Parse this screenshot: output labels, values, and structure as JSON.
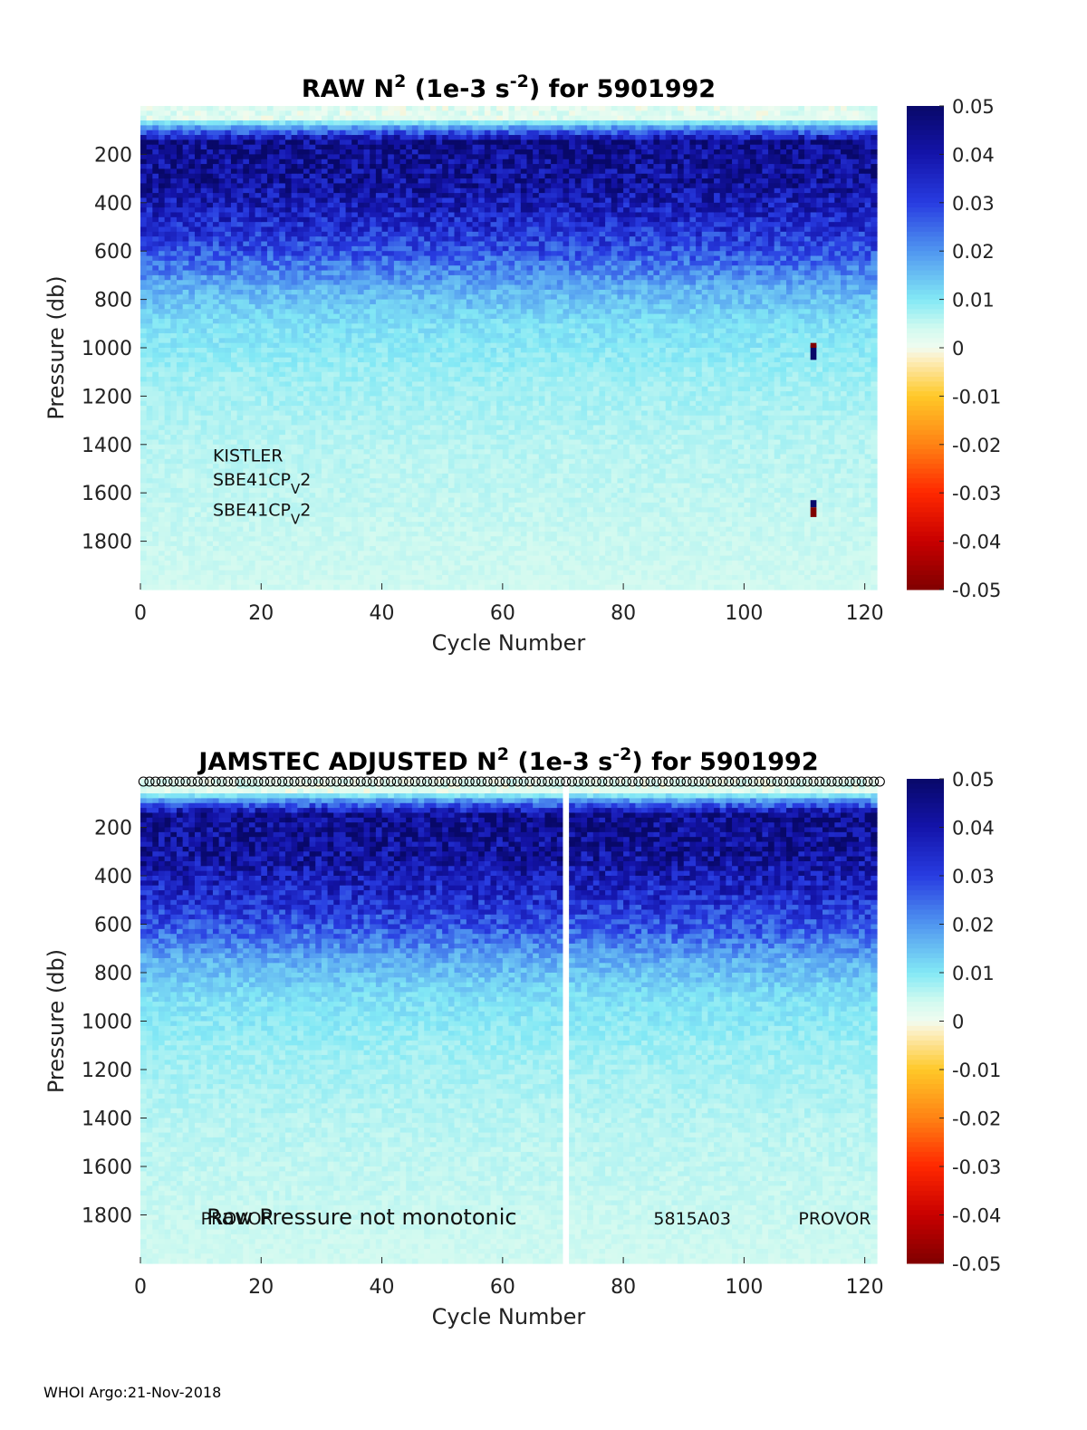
{
  "footer": "WHOI Argo:21-Nov-2018",
  "chart_data": [
    {
      "type": "heatmap",
      "title": {
        "pre": "RAW N",
        "sup1": "2",
        "mid": " (1e-3 s",
        "sup2": "-2",
        "post": ") for 5901992"
      },
      "xlabel": "Cycle Number",
      "ylabel": "Pressure (db)",
      "xlim": [
        0,
        122
      ],
      "ylim": [
        0,
        2000
      ],
      "y_reversed": true,
      "xticks": [
        0,
        20,
        40,
        60,
        80,
        100,
        120
      ],
      "yticks": [
        200,
        400,
        600,
        800,
        1000,
        1200,
        1400,
        1600,
        1800
      ],
      "colorbar": {
        "range": [
          -0.05,
          0.05
        ],
        "ticks": [
          "0.05",
          "0.04",
          "0.03",
          "0.02",
          "0.01",
          "0",
          "-0.01",
          "-0.02",
          "-0.03",
          "-0.04",
          "-0.05"
        ]
      },
      "profile": {
        "description_levels_db": [
          50,
          150,
          300,
          450,
          600,
          750,
          900,
          1100,
          1400,
          2000
        ],
        "typical_values": [
          0.002,
          0.045,
          0.043,
          0.036,
          0.028,
          0.017,
          0.011,
          0.008,
          0.006,
          0.004
        ]
      },
      "gap_cycles": [],
      "anomalies": [
        {
          "cycle": 111,
          "p_from": 990,
          "p_to": 1050,
          "value": 0.05
        },
        {
          "cycle": 111,
          "p_from": 980,
          "p_to": 1000,
          "value": -0.05
        },
        {
          "cycle": 111,
          "p_from": 1630,
          "p_to": 1660,
          "value": 0.05
        },
        {
          "cycle": 111,
          "p_from": 1660,
          "p_to": 1700,
          "value": -0.05
        }
      ],
      "annotations": [
        {
          "text": "KISTLER",
          "x": 12,
          "y": 1470,
          "subscript": ""
        },
        {
          "text": "SBE41CP",
          "x": 12,
          "y": 1570,
          "subscript": "V",
          "suffix": "2"
        },
        {
          "text": "SBE41CP",
          "x": 12,
          "y": 1695,
          "subscript": "V",
          "suffix": "2"
        }
      ],
      "top_markers": false
    },
    {
      "type": "heatmap",
      "title": {
        "pre": "JAMSTEC  ADJUSTED N",
        "sup1": "2",
        "mid": " (1e-3 s",
        "sup2": "-2",
        "post": ") for 5901992"
      },
      "xlabel": "Cycle Number",
      "ylabel": "Pressure (db)",
      "xlim": [
        0,
        122
      ],
      "ylim": [
        0,
        2000
      ],
      "y_reversed": true,
      "xticks": [
        0,
        20,
        40,
        60,
        80,
        100,
        120
      ],
      "yticks": [
        200,
        400,
        600,
        800,
        1000,
        1200,
        1400,
        1600,
        1800
      ],
      "colorbar": {
        "range": [
          -0.05,
          0.05
        ],
        "ticks": [
          "0.05",
          "0.04",
          "0.03",
          "0.02",
          "0.01",
          "0",
          "-0.01",
          "-0.02",
          "-0.03",
          "-0.04",
          "-0.05"
        ]
      },
      "profile": {
        "description_levels_db": [
          50,
          150,
          300,
          450,
          600,
          750,
          900,
          1100,
          1400,
          2000
        ],
        "typical_values": [
          0.002,
          0.045,
          0.043,
          0.036,
          0.028,
          0.017,
          0.011,
          0.008,
          0.006,
          0.004
        ]
      },
      "gap_cycles": [
        70
      ],
      "anomalies": [],
      "annotations": [
        {
          "text": "PROVOR",
          "x": 10,
          "y": 1840,
          "subscript": ""
        },
        {
          "text": "Raw Pressure not monotonic",
          "x": 11,
          "y": 1840,
          "subscript": ""
        },
        {
          "text": "5815A03",
          "x": 85,
          "y": 1840,
          "subscript": ""
        },
        {
          "text": "PROVOR",
          "x": 109,
          "y": 1840,
          "subscript": ""
        }
      ],
      "top_markers": true,
      "top_marker_symbol": "o"
    }
  ]
}
